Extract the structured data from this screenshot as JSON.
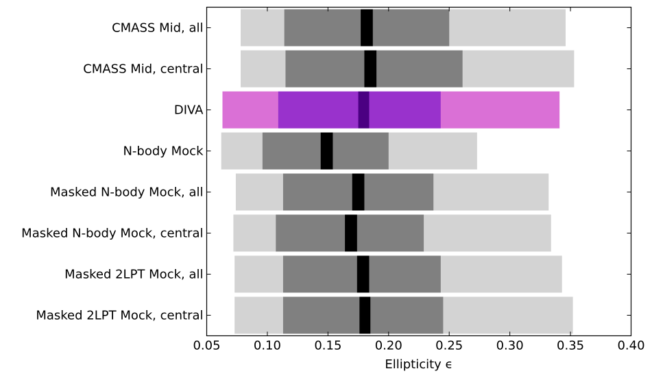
{
  "chart_data": {
    "type": "bar",
    "orientation": "horizontal",
    "style": "range (box) plot with outer range, inner range and median band per category",
    "xlabel": "Ellipticity ϵ",
    "xlim": [
      0.05,
      0.4
    ],
    "xticks": [
      "0.05",
      "0.10",
      "0.15",
      "0.20",
      "0.25",
      "0.30",
      "0.35",
      "0.40"
    ],
    "grid": false,
    "categories": [
      "CMASS Mid, all",
      "CMASS Mid, central",
      "DIVA",
      "N-body Mock",
      "Masked N-body Mock, all",
      "Masked N-body Mock, central",
      "Masked 2LPT Mock, all",
      "Masked 2LPT Mock, central"
    ],
    "series": [
      {
        "role": "outer_range",
        "low": [
          0.078,
          0.078,
          0.063,
          0.062,
          0.074,
          0.072,
          0.073,
          0.073
        ],
        "high": [
          0.346,
          0.353,
          0.341,
          0.273,
          0.332,
          0.334,
          0.343,
          0.352
        ]
      },
      {
        "role": "inner_range",
        "low": [
          0.114,
          0.115,
          0.109,
          0.096,
          0.113,
          0.107,
          0.113,
          0.113
        ],
        "high": [
          0.25,
          0.261,
          0.243,
          0.2,
          0.237,
          0.229,
          0.243,
          0.245
        ]
      },
      {
        "role": "median_band",
        "low": [
          0.177,
          0.18,
          0.175,
          0.144,
          0.17,
          0.164,
          0.174,
          0.176
        ],
        "high": [
          0.187,
          0.19,
          0.184,
          0.154,
          0.18,
          0.174,
          0.184,
          0.185
        ]
      }
    ],
    "colors": {
      "default_outer": "#d3d3d3",
      "default_inner": "#808080",
      "default_median": "#000000",
      "highlight_outer": "#da70d6",
      "highlight_inner": "#9932cc",
      "highlight_median": "#4b0082"
    },
    "highlight_category": "DIVA"
  }
}
